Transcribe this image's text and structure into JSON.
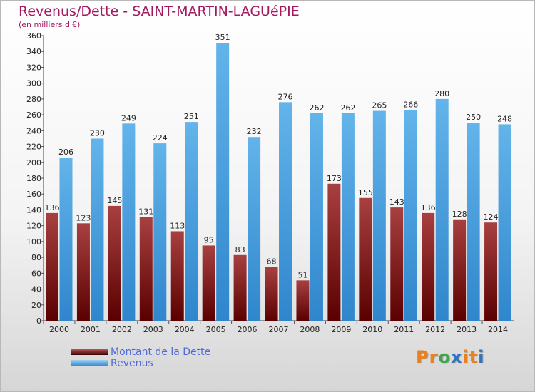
{
  "title": "Revenus/Dette - SAINT-MARTIN-LAGUéPIE",
  "subtitle": "(en milliers d'€)",
  "chart_data": {
    "type": "bar",
    "categories": [
      "2000",
      "2001",
      "2002",
      "2003",
      "2004",
      "2005",
      "2006",
      "2007",
      "2008",
      "2009",
      "2010",
      "2011",
      "2012",
      "2013",
      "2014"
    ],
    "series": [
      {
        "name": "Montant de la Dette",
        "color": "#7a1a1a",
        "values": [
          136,
          123,
          145,
          131,
          113,
          95,
          83,
          68,
          51,
          173,
          155,
          143,
          136,
          128,
          124
        ]
      },
      {
        "name": "Revenus",
        "color": "#4aa3e0",
        "values": [
          206,
          230,
          249,
          224,
          251,
          351,
          232,
          276,
          262,
          262,
          265,
          266,
          280,
          250,
          248
        ]
      }
    ],
    "ylim": [
      0,
      360
    ],
    "ytick_step": 20,
    "grid": false,
    "legend_position": "bottom-left"
  },
  "legend": [
    {
      "label": "Montant de la Dette"
    },
    {
      "label": "Revenus"
    }
  ],
  "logo": {
    "letters": [
      "P",
      "r",
      "o",
      "x",
      "i",
      "t",
      "i"
    ],
    "colors": [
      "#e8821e",
      "#e8821e",
      "#3aa84a",
      "#2f74c0",
      "#e8821e",
      "#e8821e",
      "#2f74c0"
    ]
  }
}
